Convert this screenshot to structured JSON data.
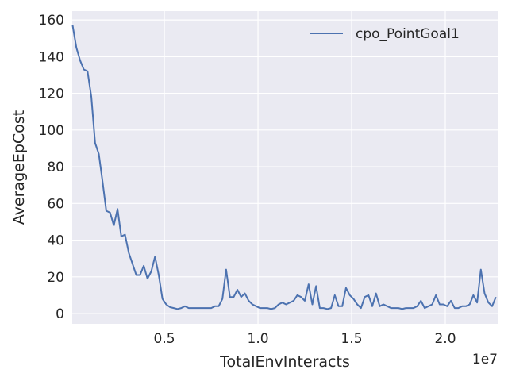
{
  "chart_data": {
    "type": "line",
    "xlabel": "TotalEnvInteracts",
    "ylabel": "AverageEpCost",
    "x_offset_label": "1e7",
    "x": [
      100000,
      300000,
      500000,
      700000,
      900000,
      1100000,
      1300000,
      1500000,
      1700000,
      1900000,
      2100000,
      2300000,
      2500000,
      2700000,
      2900000,
      3100000,
      3300000,
      3500000,
      3700000,
      3900000,
      4100000,
      4300000,
      4500000,
      4700000,
      4900000,
      5100000,
      5300000,
      5500000,
      5700000,
      5900000,
      6100000,
      6300000,
      6500000,
      6700000,
      6900000,
      7100000,
      7300000,
      7500000,
      7700000,
      7900000,
      8100000,
      8300000,
      8500000,
      8700000,
      8900000,
      9100000,
      9300000,
      9500000,
      9700000,
      9900000,
      10100000,
      10300000,
      10500000,
      10700000,
      10900000,
      11100000,
      11300000,
      11500000,
      11700000,
      11900000,
      12100000,
      12300000,
      12500000,
      12700000,
      12900000,
      13100000,
      13300000,
      13500000,
      13700000,
      13900000,
      14100000,
      14300000,
      14500000,
      14700000,
      14900000,
      15100000,
      15300000,
      15500000,
      15700000,
      15900000,
      16100000,
      16300000,
      16500000,
      16700000,
      16900000,
      17100000,
      17300000,
      17500000,
      17700000,
      17900000,
      18100000,
      18300000,
      18500000,
      18700000,
      18900000,
      19100000,
      19300000,
      19500000,
      19700000,
      19900000,
      20100000,
      20300000,
      20500000,
      20700000,
      20900000,
      21100000,
      21300000,
      21500000,
      21700000,
      21900000,
      22100000,
      22300000,
      22500000,
      22700000
    ],
    "series": [
      {
        "name": "cpo_PointGoal1",
        "color": "#4c72b0",
        "values": [
          157,
          145,
          138,
          133,
          132,
          118,
          93,
          87,
          72,
          56,
          55,
          48,
          57,
          42,
          43,
          33,
          27,
          21,
          21,
          26,
          19,
          23,
          31,
          21,
          8,
          5,
          3.5,
          3,
          2.5,
          3,
          4,
          3,
          3,
          3,
          3,
          3,
          3,
          3,
          4,
          4,
          8,
          24,
          9,
          9,
          13,
          9,
          11,
          7,
          5,
          4,
          3,
          3,
          3,
          2.5,
          3,
          5,
          6,
          5,
          6,
          7,
          10,
          9,
          7,
          16,
          5,
          15,
          3,
          3,
          2.5,
          3,
          10,
          4,
          4,
          14,
          10,
          8,
          5,
          3,
          9,
          10,
          4,
          11,
          4,
          5,
          4,
          3,
          3,
          3,
          2.5,
          3,
          3,
          3,
          4,
          7,
          3,
          4,
          5,
          10,
          5,
          5,
          4,
          7,
          3,
          3,
          4,
          4,
          5,
          10,
          6,
          24,
          11,
          6,
          4,
          9
        ]
      }
    ],
    "xlim": [
      80000,
      22840000
    ],
    "xticks": [
      {
        "value": 5000000,
        "label": "0.5"
      },
      {
        "value": 10000000,
        "label": "1.0"
      },
      {
        "value": 15000000,
        "label": "1.5"
      },
      {
        "value": 20000000,
        "label": "2.0"
      }
    ],
    "ylim": [
      -5.6,
      164.8
    ],
    "yticks": [
      0,
      20,
      40,
      60,
      80,
      100,
      120,
      140,
      160
    ],
    "grid": true,
    "legend": "upper right"
  }
}
